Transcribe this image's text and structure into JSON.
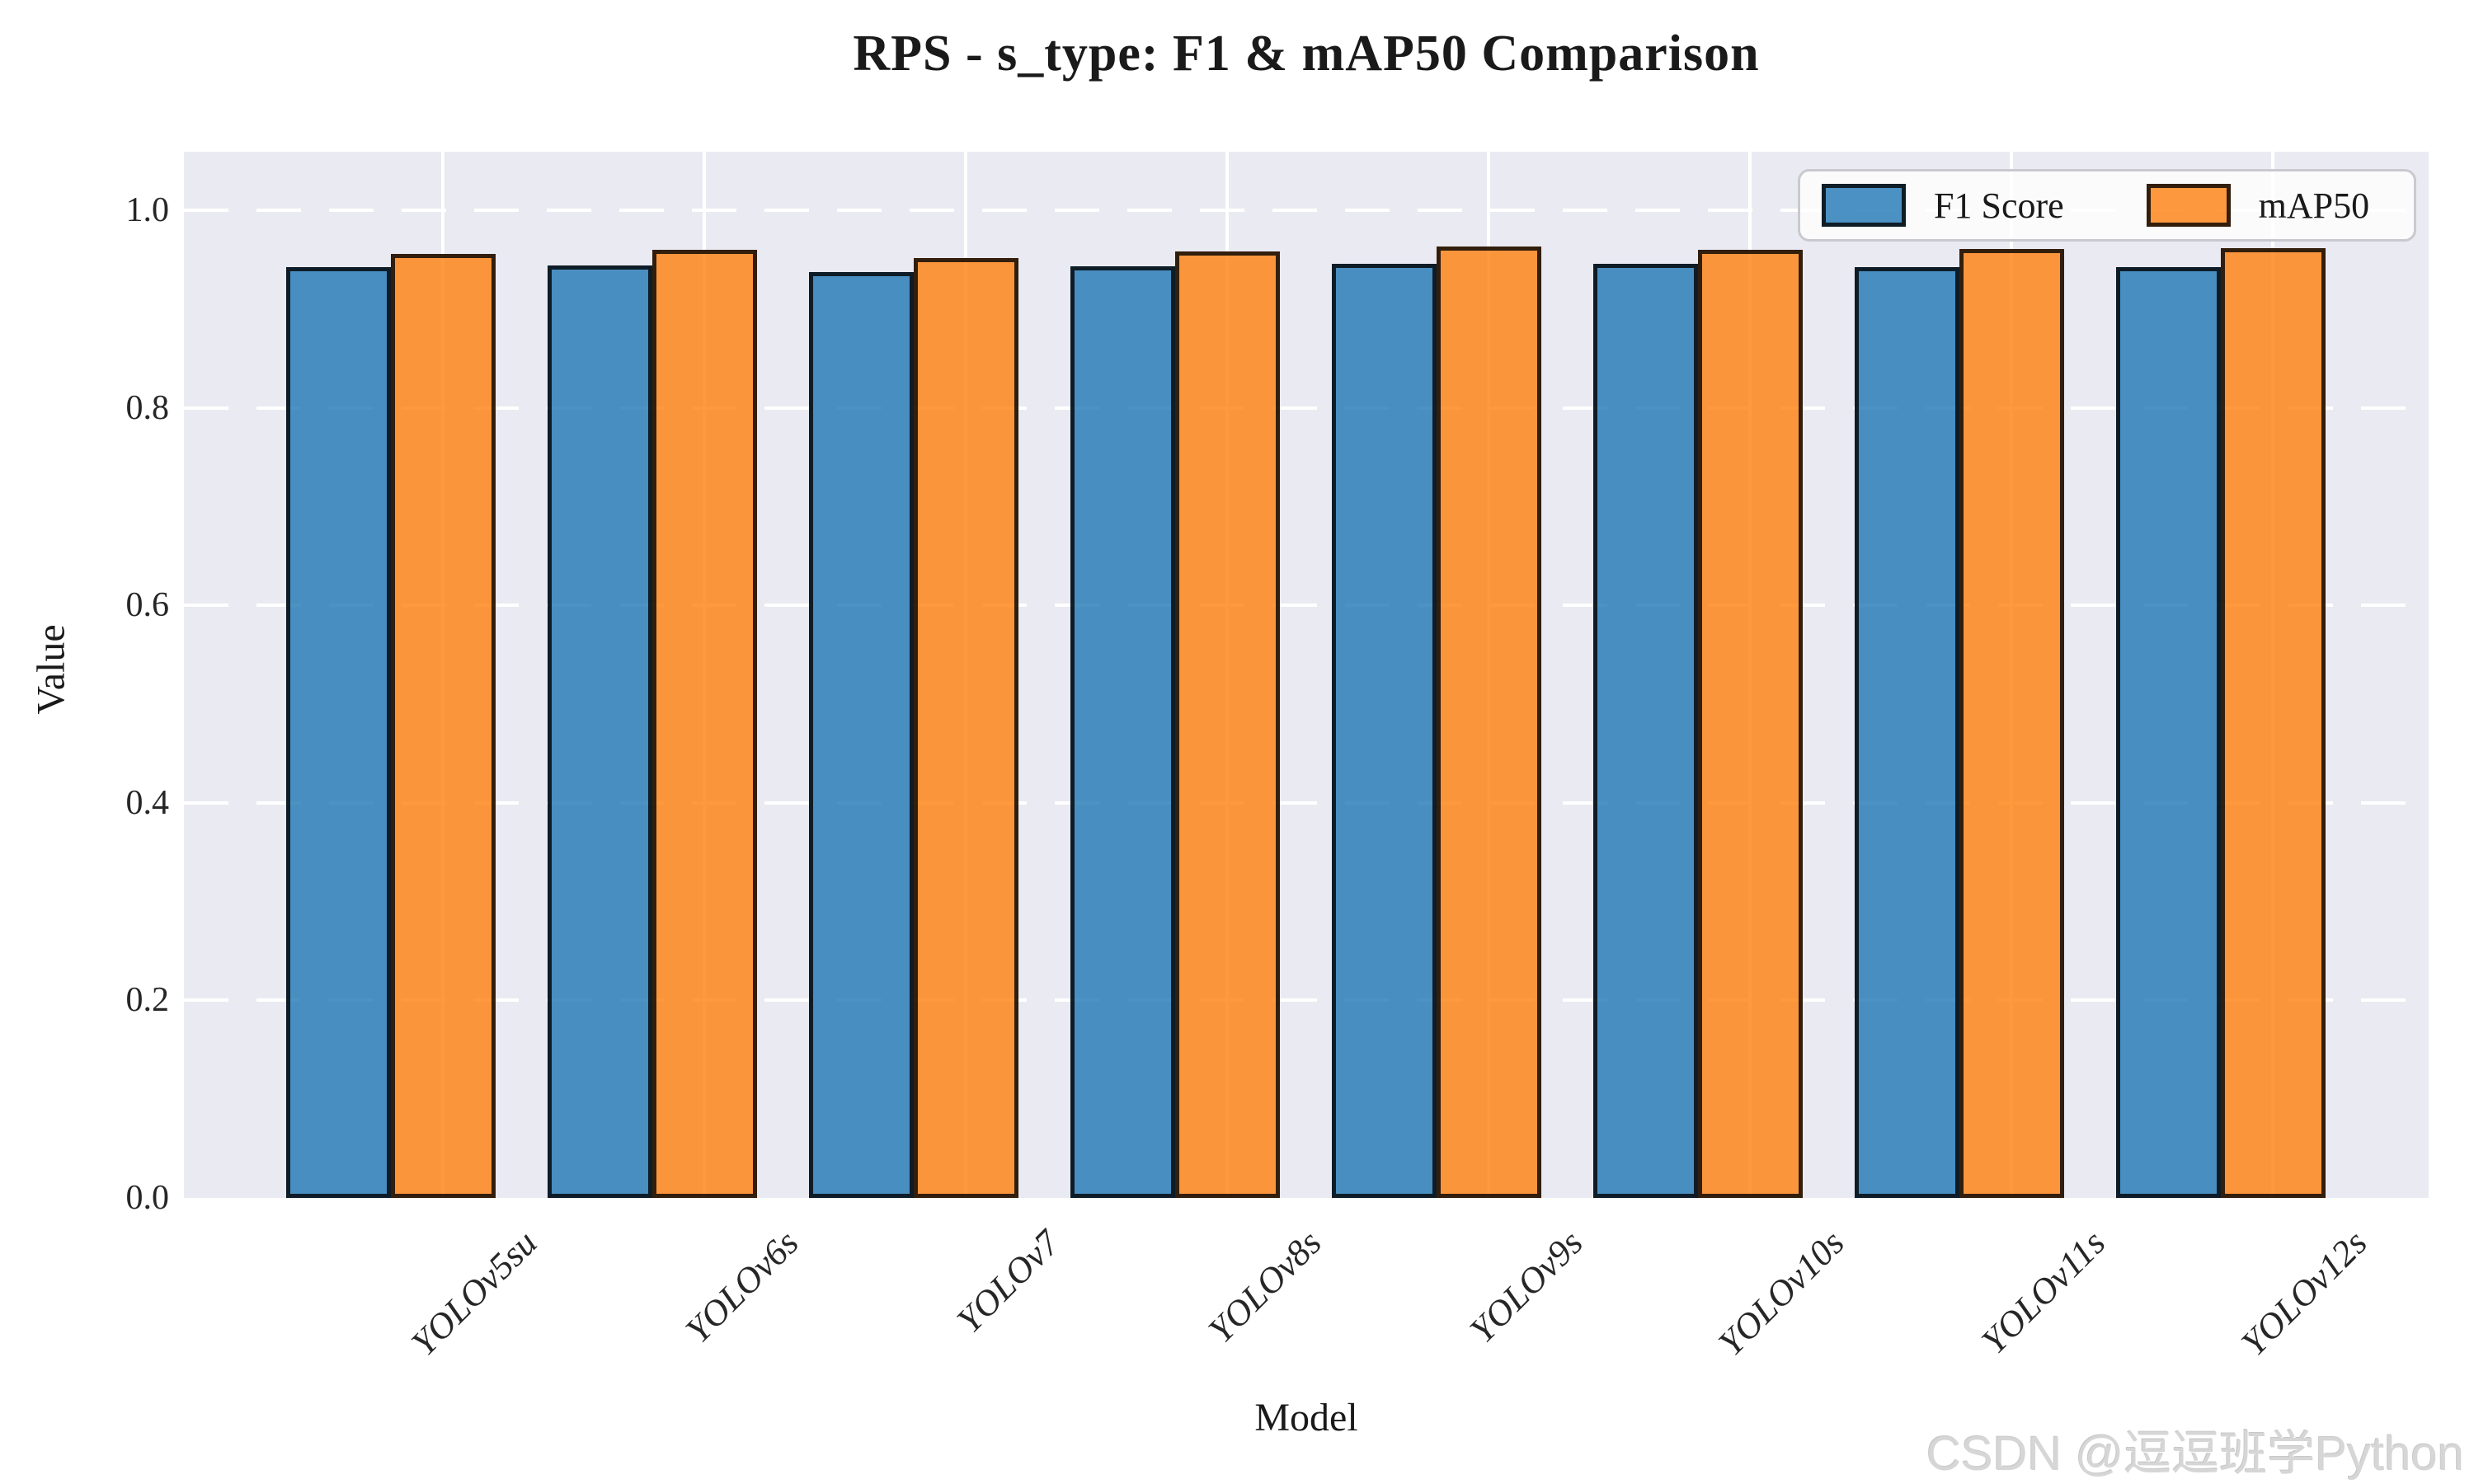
{
  "watermark": "CSDN @逗逗班学Python",
  "chart_data": {
    "type": "bar",
    "title": "RPS - s_type: F1 & mAP50 Comparison",
    "xlabel": "Model",
    "ylabel": "Value",
    "ylim": [
      0,
      1.06
    ],
    "yticks": [
      0.0,
      0.2,
      0.4,
      0.6,
      0.8,
      1.0
    ],
    "grid": {
      "horizontal_style": "dashed",
      "vertical_style": "solid",
      "color": "#ffffff",
      "background": "#eaeaf2"
    },
    "legend_position": "upper right",
    "categories": [
      "YOLOv5su",
      "YOLOv6s",
      "YOLOv7",
      "YOLOv8s",
      "YOLOv9s",
      "YOLOv10s",
      "YOLOv11s",
      "YOLOv12s"
    ],
    "series": [
      {
        "name": "F1 Score",
        "color": "#1f77b4",
        "fill_rgba": "rgba(31,119,180,0.8)",
        "values": [
          0.942,
          0.944,
          0.937,
          0.943,
          0.946,
          0.946,
          0.942,
          0.942
        ]
      },
      {
        "name": "mAP50",
        "color": "#ff7f0e",
        "fill_rgba": "rgba(255,127,14,0.8)",
        "values": [
          0.956,
          0.96,
          0.952,
          0.958,
          0.963,
          0.96,
          0.961,
          0.962
        ]
      }
    ],
    "bar_edge_color": "#1a1a1a"
  }
}
